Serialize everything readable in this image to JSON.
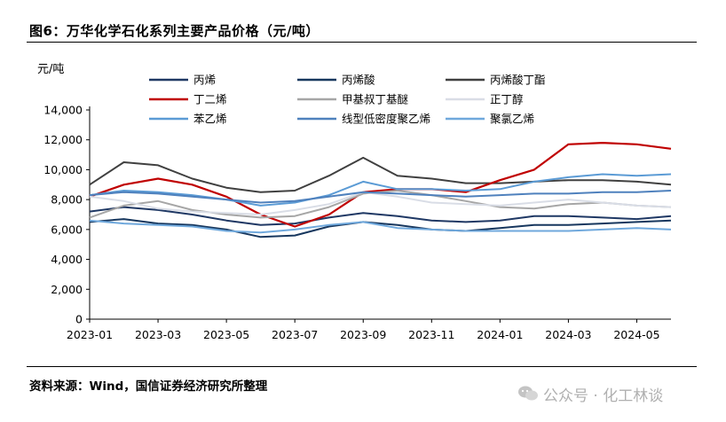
{
  "title": "图6：万华化学石化系列主要产品价格（元/吨）",
  "source": "资料来源：Wind，国信证券经济研究所整理",
  "watermark": "公众号 · 化工林谈",
  "watermark_icon": "wechat-icon",
  "chart_data": {
    "type": "line",
    "title": "图6：万华化学石化系列主要产品价格（元/吨）",
    "ylabel": "元/吨",
    "xlabel": "",
    "ylim": [
      0,
      14000
    ],
    "yticks": [
      0,
      2000,
      4000,
      6000,
      8000,
      10000,
      12000,
      14000
    ],
    "ytick_labels": [
      "0",
      "2,000",
      "4,000",
      "6,000",
      "8,000",
      "10,000",
      "12,000",
      "14,000"
    ],
    "xtick_labels": [
      "2023-01",
      "2023-03",
      "2023-05",
      "2023-07",
      "2023-09",
      "2023-11",
      "2024-01",
      "2024-03",
      "2024-05"
    ],
    "x": [
      "2023-01",
      "2023-02",
      "2023-03",
      "2023-04",
      "2023-05",
      "2023-06",
      "2023-07",
      "2023-08",
      "2023-09",
      "2023-10",
      "2023-11",
      "2023-12",
      "2024-01",
      "2024-02",
      "2024-03",
      "2024-04",
      "2024-05",
      "2024-06"
    ],
    "grid": false,
    "legend_position": "top",
    "series": [
      {
        "name": "丙烯",
        "color": "#1f3864",
        "values": [
          7200,
          7500,
          7300,
          7000,
          6600,
          6300,
          6400,
          6800,
          7100,
          6900,
          6600,
          6500,
          6600,
          6900,
          6900,
          6800,
          6700,
          6900
        ]
      },
      {
        "name": "丙烯酸",
        "color": "#17375e",
        "values": [
          6500,
          6700,
          6400,
          6300,
          6000,
          5500,
          5600,
          6200,
          6500,
          6300,
          6000,
          5900,
          6100,
          6300,
          6300,
          6400,
          6500,
          6600
        ]
      },
      {
        "name": "丙烯酸丁酯",
        "color": "#404040",
        "values": [
          9000,
          10500,
          10300,
          9400,
          8800,
          8500,
          8600,
          9600,
          10800,
          9600,
          9400,
          9100,
          9100,
          9200,
          9300,
          9300,
          9200,
          9000
        ]
      },
      {
        "name": "丁二烯",
        "color": "#c00000",
        "values": [
          8200,
          9000,
          9400,
          9000,
          8200,
          7000,
          6200,
          7000,
          8500,
          8700,
          8700,
          8500,
          9300,
          10000,
          11700,
          11800,
          11700,
          11400
        ]
      },
      {
        "name": "甲基叔丁基醚",
        "color": "#a6a6a6",
        "values": [
          6800,
          7600,
          7900,
          7300,
          7000,
          6800,
          6900,
          7500,
          8400,
          8600,
          8300,
          7900,
          7500,
          7400,
          7700,
          7800,
          7600,
          7500
        ]
      },
      {
        "name": "正丁醇",
        "color": "#d9dde6",
        "values": [
          8200,
          7900,
          7400,
          7200,
          7100,
          7000,
          7300,
          7700,
          8500,
          8200,
          7800,
          7700,
          7600,
          7800,
          8000,
          7800,
          7600,
          7500
        ]
      },
      {
        "name": "苯乙烯",
        "color": "#5b9bd5",
        "values": [
          8300,
          8600,
          8500,
          8300,
          8000,
          7600,
          7800,
          8300,
          9200,
          8700,
          8700,
          8600,
          8700,
          9200,
          9500,
          9700,
          9600,
          9700
        ]
      },
      {
        "name": "线型低密度聚乙烯",
        "color": "#4f81bd",
        "values": [
          8300,
          8500,
          8400,
          8200,
          8000,
          7800,
          7900,
          8200,
          8500,
          8400,
          8300,
          8200,
          8300,
          8400,
          8400,
          8500,
          8500,
          8600
        ]
      },
      {
        "name": "聚氯乙烯",
        "color": "#6fa8dc",
        "values": [
          6600,
          6400,
          6300,
          6200,
          5900,
          5800,
          6000,
          6300,
          6500,
          6100,
          6000,
          5900,
          5900,
          5900,
          5900,
          6000,
          6100,
          6000
        ]
      }
    ]
  }
}
